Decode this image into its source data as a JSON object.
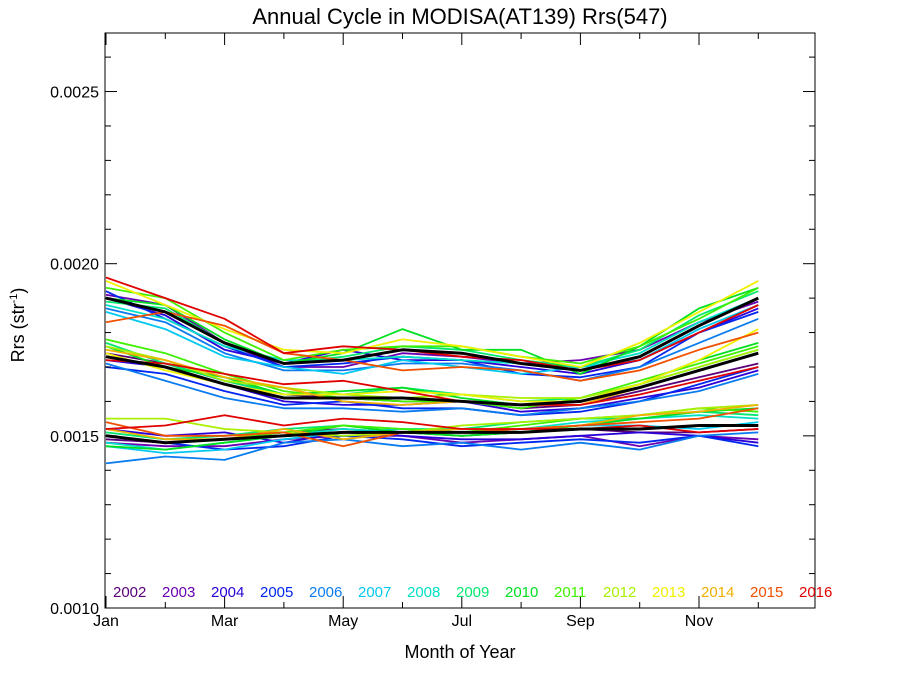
{
  "chart_data": {
    "type": "line",
    "title": "Annual Cycle in MODISA(AT139) Rrs(547)",
    "xlabel": "Month of Year",
    "ylabel_main": "Rrs (str",
    "ylabel_sup": "-1",
    "ylabel_close": ")",
    "xlim": [
      1,
      13
    ],
    "ylim": [
      0.001,
      0.00267
    ],
    "x_ticks": [
      {
        "value": 1,
        "label": "Jan"
      },
      {
        "value": 3,
        "label": "Mar"
      },
      {
        "value": 5,
        "label": "May"
      },
      {
        "value": 7,
        "label": "Jul"
      },
      {
        "value": 9,
        "label": "Sep"
      },
      {
        "value": 11,
        "label": "Nov"
      }
    ],
    "y_ticks": [
      {
        "value": 0.001,
        "label": "0.0010"
      },
      {
        "value": 0.0015,
        "label": "0.0015"
      },
      {
        "value": 0.002,
        "label": "0.0020"
      },
      {
        "value": 0.0025,
        "label": "0.0025"
      }
    ],
    "y_minor_step": 0.0001,
    "x": [
      1,
      2,
      3,
      4,
      5,
      6,
      7,
      8,
      9,
      10,
      11,
      12
    ],
    "legend": [
      {
        "label": "2002",
        "color": "#5a007a"
      },
      {
        "label": "2003",
        "color": "#6a00b0"
      },
      {
        "label": "2004",
        "color": "#2a00d8"
      },
      {
        "label": "2005",
        "color": "#0026f0"
      },
      {
        "label": "2006",
        "color": "#0a7cf0"
      },
      {
        "label": "2007",
        "color": "#00c8f0"
      },
      {
        "label": "2008",
        "color": "#00e0c8"
      },
      {
        "label": "2009",
        "color": "#00e870"
      },
      {
        "label": "2010",
        "color": "#00e020"
      },
      {
        "label": "2011",
        "color": "#40f000"
      },
      {
        "label": "2012",
        "color": "#a8f000"
      },
      {
        "label": "2013",
        "color": "#f0f000"
      },
      {
        "label": "2014",
        "color": "#f0b000"
      },
      {
        "label": "2015",
        "color": "#f05000"
      },
      {
        "label": "2016",
        "color": "#e00000"
      }
    ],
    "series": [
      {
        "color": "#5a007a",
        "values": [
          0.00174,
          0.00171,
          0.00166,
          0.00162,
          0.00161,
          0.0016,
          0.0016,
          0.00158,
          0.00159,
          0.00163,
          0.00167,
          0.00171
        ]
      },
      {
        "color": "#5a007a",
        "values": [
          0.00149,
          0.00148,
          0.00149,
          0.00151,
          0.00152,
          0.00151,
          0.0015,
          0.00151,
          0.00152,
          0.00151,
          0.00151,
          0.00152
        ]
      },
      {
        "color": "#6a00b0",
        "values": [
          0.00191,
          0.00188,
          0.00177,
          0.0017,
          0.0017,
          0.00174,
          0.00173,
          0.00171,
          0.00172,
          0.00175,
          0.00183,
          0.00189
        ]
      },
      {
        "color": "#6a00b0",
        "values": [
          0.00148,
          0.00147,
          0.00147,
          0.00149,
          0.0015,
          0.0015,
          0.00148,
          0.00149,
          0.0015,
          0.00147,
          0.0015,
          0.00149
        ]
      },
      {
        "color": "#2a00d8",
        "values": [
          0.0019,
          0.00185,
          0.00175,
          0.00171,
          0.00175,
          0.00172,
          0.00172,
          0.0017,
          0.00168,
          0.00172,
          0.0018,
          0.00187
        ]
      },
      {
        "color": "#2a00d8",
        "values": [
          0.00172,
          0.0017,
          0.00165,
          0.0016,
          0.00159,
          0.00159,
          0.0016,
          0.00157,
          0.00158,
          0.00161,
          0.00164,
          0.00169
        ]
      },
      {
        "color": "#2a00d8",
        "values": [
          0.00152,
          0.0015,
          0.00151,
          0.00148,
          0.00151,
          0.0015,
          0.00149,
          0.00149,
          0.0015,
          0.00151,
          0.0015,
          0.00148
        ]
      },
      {
        "color": "#0026f0",
        "values": [
          0.00192,
          0.00184,
          0.00176,
          0.0017,
          0.00171,
          0.00173,
          0.00172,
          0.00168,
          0.00167,
          0.0017,
          0.0018,
          0.00186
        ]
      },
      {
        "color": "#0026f0",
        "values": [
          0.0017,
          0.00168,
          0.00163,
          0.00159,
          0.0016,
          0.00158,
          0.00158,
          0.00156,
          0.00157,
          0.0016,
          0.00165,
          0.0017
        ]
      },
      {
        "color": "#0026f0",
        "values": [
          0.0015,
          0.00148,
          0.00146,
          0.00147,
          0.0015,
          0.00149,
          0.00147,
          0.00148,
          0.00149,
          0.00148,
          0.0015,
          0.00147
        ]
      },
      {
        "color": "#0a7cf0",
        "values": [
          0.00187,
          0.00183,
          0.00174,
          0.00169,
          0.00169,
          0.00171,
          0.00171,
          0.00169,
          0.00166,
          0.0017,
          0.00177,
          0.00184
        ]
      },
      {
        "color": "#0a7cf0",
        "values": [
          0.00171,
          0.00166,
          0.00161,
          0.00158,
          0.00158,
          0.00157,
          0.00158,
          0.00156,
          0.00158,
          0.0016,
          0.00163,
          0.00168
        ]
      },
      {
        "color": "#0a7cf0",
        "values": [
          0.00142,
          0.00144,
          0.00143,
          0.00148,
          0.00149,
          0.00147,
          0.00148,
          0.00146,
          0.00148,
          0.00146,
          0.0015,
          0.00151
        ]
      },
      {
        "color": "#00c8f0",
        "values": [
          0.00186,
          0.00181,
          0.00173,
          0.0017,
          0.00168,
          0.00172,
          0.0017,
          0.00168,
          0.0017,
          0.00172,
          0.00181,
          0.00188
        ]
      },
      {
        "color": "#00c8f0",
        "values": [
          0.00147,
          0.00145,
          0.00146,
          0.00149,
          0.00151,
          0.00152,
          0.00151,
          0.00152,
          0.00153,
          0.00153,
          0.00152,
          0.00154
        ]
      },
      {
        "color": "#00e0c8",
        "values": [
          0.00188,
          0.00184,
          0.00176,
          0.00172,
          0.00172,
          0.00173,
          0.00172,
          0.00171,
          0.0017,
          0.00174,
          0.00183,
          0.0019
        ]
      },
      {
        "color": "#00e0c8",
        "values": [
          0.00148,
          0.00146,
          0.00148,
          0.0015,
          0.00152,
          0.00151,
          0.00151,
          0.00152,
          0.00154,
          0.00155,
          0.00156,
          0.00155
        ]
      },
      {
        "color": "#00e870",
        "values": [
          0.00189,
          0.00187,
          0.00177,
          0.00171,
          0.00173,
          0.00176,
          0.00175,
          0.00172,
          0.0017,
          0.00175,
          0.00185,
          0.00192
        ]
      },
      {
        "color": "#00e870",
        "values": [
          0.00177,
          0.00171,
          0.00166,
          0.00162,
          0.00162,
          0.00164,
          0.00162,
          0.0016,
          0.00161,
          0.00165,
          0.0017,
          0.00175
        ]
      },
      {
        "color": "#00e870",
        "values": [
          0.00151,
          0.00149,
          0.0015,
          0.00152,
          0.00153,
          0.00152,
          0.00152,
          0.00154,
          0.00155,
          0.00155,
          0.00157,
          0.00156
        ]
      },
      {
        "color": "#00e020",
        "values": [
          0.0019,
          0.00188,
          0.00178,
          0.00171,
          0.00174,
          0.00181,
          0.00175,
          0.00175,
          0.00168,
          0.00176,
          0.00187,
          0.00193
        ]
      },
      {
        "color": "#00e020",
        "values": [
          0.00176,
          0.0017,
          0.00167,
          0.00162,
          0.00163,
          0.00164,
          0.00161,
          0.00159,
          0.0016,
          0.00165,
          0.00172,
          0.00177
        ]
      },
      {
        "color": "#00e020",
        "values": [
          0.00147,
          0.00146,
          0.00148,
          0.0015,
          0.00153,
          0.00151,
          0.0015,
          0.00151,
          0.00153,
          0.00155,
          0.00157,
          0.00158
        ]
      },
      {
        "color": "#40f000",
        "values": [
          0.00193,
          0.0019,
          0.0018,
          0.00172,
          0.00175,
          0.00176,
          0.00176,
          0.00173,
          0.00171,
          0.00176,
          0.00184,
          0.00193
        ]
      },
      {
        "color": "#40f000",
        "values": [
          0.00178,
          0.00174,
          0.00168,
          0.00163,
          0.00161,
          0.0016,
          0.0016,
          0.00158,
          0.00161,
          0.00166,
          0.00171,
          0.00176
        ]
      },
      {
        "color": "#40f000",
        "values": [
          0.0015,
          0.00148,
          0.00149,
          0.00151,
          0.00153,
          0.00152,
          0.00151,
          0.00153,
          0.00155,
          0.00156,
          0.00158,
          0.00157
        ]
      },
      {
        "color": "#a8f000",
        "values": [
          0.00155,
          0.00155,
          0.00152,
          0.00151,
          0.0015,
          0.00151,
          0.00153,
          0.00154,
          0.00155,
          0.00156,
          0.00158,
          0.00159
        ]
      },
      {
        "color": "#a8f000",
        "values": [
          0.00176,
          0.00172,
          0.00166,
          0.00164,
          0.00162,
          0.00161,
          0.00162,
          0.00161,
          0.00161,
          0.00165,
          0.0017,
          0.00175
        ]
      },
      {
        "color": "#f0f000",
        "values": [
          0.00195,
          0.00188,
          0.00181,
          0.00175,
          0.00174,
          0.00178,
          0.00176,
          0.00173,
          0.0017,
          0.00177,
          0.00186,
          0.00195
        ]
      },
      {
        "color": "#f0f000",
        "values": [
          0.00174,
          0.00169,
          0.00165,
          0.00162,
          0.00162,
          0.00163,
          0.00162,
          0.0016,
          0.0016,
          0.00165,
          0.00172,
          0.00181
        ]
      },
      {
        "color": "#f0b000",
        "values": [
          0.00175,
          0.00172,
          0.00167,
          0.00164,
          0.0016,
          0.00159,
          0.0016,
          0.00159,
          0.00159,
          0.00164,
          0.00169,
          0.00174
        ]
      },
      {
        "color": "#f0b000",
        "values": [
          0.00152,
          0.00149,
          0.00149,
          0.00152,
          0.00149,
          0.00151,
          0.00152,
          0.00152,
          0.00153,
          0.00156,
          0.00157,
          0.00159
        ]
      },
      {
        "color": "#f05000",
        "values": [
          0.00183,
          0.00186,
          0.00182,
          0.00174,
          0.00172,
          0.00169,
          0.0017,
          0.00169,
          0.00166,
          0.00169,
          0.00175,
          0.0018
        ]
      },
      {
        "color": "#f05000",
        "values": [
          0.00154,
          0.0015,
          0.0015,
          0.00151,
          0.00147,
          0.00151,
          0.00151,
          0.00152,
          0.00153,
          0.00154,
          0.00155,
          0.00158
        ]
      },
      {
        "color": "#e00000",
        "values": [
          0.00196,
          0.0019,
          0.00184,
          0.00174,
          0.00176,
          0.00175,
          0.00173,
          0.00172,
          0.00169,
          0.00172,
          0.0018,
          0.00188
        ]
      },
      {
        "color": "#e00000",
        "values": [
          0.00172,
          0.00171,
          0.00168,
          0.00165,
          0.00166,
          0.00163,
          0.0016,
          0.00159,
          0.00159,
          0.00162,
          0.00166,
          0.0017
        ]
      },
      {
        "color": "#e00000",
        "values": [
          0.00152,
          0.00153,
          0.00156,
          0.00153,
          0.00155,
          0.00154,
          0.00152,
          0.00152,
          0.00152,
          0.00153,
          0.00151,
          0.00152
        ]
      },
      {
        "color": "#000000",
        "width": 3,
        "values": [
          0.0019,
          0.00186,
          0.00177,
          0.00171,
          0.00172,
          0.00175,
          0.00174,
          0.00171,
          0.00169,
          0.00173,
          0.00182,
          0.0019
        ]
      },
      {
        "color": "#000000",
        "width": 3,
        "values": [
          0.00173,
          0.0017,
          0.00165,
          0.00161,
          0.00161,
          0.00161,
          0.0016,
          0.00159,
          0.0016,
          0.00164,
          0.00169,
          0.00174
        ]
      },
      {
        "color": "#000000",
        "width": 3,
        "values": [
          0.0015,
          0.00148,
          0.00149,
          0.0015,
          0.00151,
          0.00151,
          0.00151,
          0.00151,
          0.00152,
          0.00152,
          0.00153,
          0.00153
        ]
      }
    ]
  }
}
